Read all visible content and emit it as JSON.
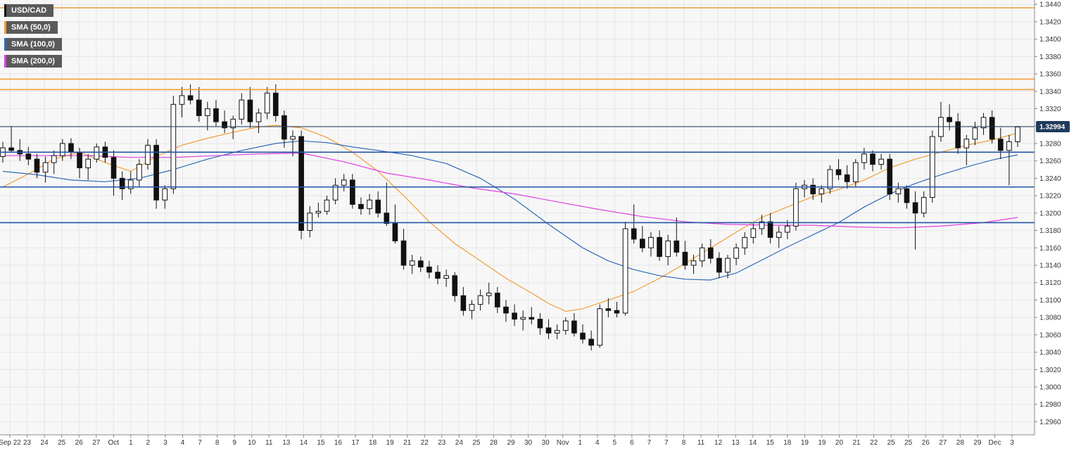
{
  "chart_data": {
    "type": "candlestick",
    "symbol": "USD/CAD",
    "ylim": [
      1.2945,
      1.3445
    ],
    "y_ticks": [
      "1.3440",
      "1.3420",
      "1.3400",
      "1.3380",
      "1.3360",
      "1.3340",
      "1.3320",
      "1.3300",
      "1.3280",
      "1.3260",
      "1.3240",
      "1.3220",
      "1.3200",
      "1.3180",
      "1.3160",
      "1.3140",
      "1.3120",
      "1.3100",
      "1.3080",
      "1.3060",
      "1.3040",
      "1.3020",
      "1.3000",
      "1.2980",
      "1.2960"
    ],
    "x_ticks": [
      "Sep 22",
      "23",
      "24",
      "25",
      "26",
      "27",
      "Oct",
      "1",
      "2",
      "3",
      "4",
      "7",
      "8",
      "9",
      "10",
      "11",
      "13",
      "14",
      "15",
      "16",
      "17",
      "18",
      "19",
      "21",
      "22",
      "23",
      "24",
      "25",
      "28",
      "29",
      "30",
      "30",
      "Nov",
      "1",
      "4",
      "5",
      "6",
      "7",
      "7",
      "8",
      "11",
      "12",
      "13",
      "14",
      "15",
      "18",
      "19",
      "19",
      "20",
      "21",
      "22",
      "25",
      "25",
      "26",
      "27",
      "28",
      "29",
      "Dec",
      "3"
    ],
    "current_price": "1.32994",
    "current_price_value": 1.32994,
    "horizontal_levels": [
      {
        "kind": "resistance",
        "value": 1.3436,
        "color": "#f29d38"
      },
      {
        "kind": "resistance",
        "value": 1.3354,
        "color": "#f29d38"
      },
      {
        "kind": "resistance",
        "value": 1.3342,
        "color": "#f29d38"
      },
      {
        "kind": "support",
        "value": 1.327,
        "color": "#2255a4"
      },
      {
        "kind": "support",
        "value": 1.323,
        "color": "#2255a4"
      },
      {
        "kind": "support",
        "value": 1.3189,
        "color": "#2255a4"
      }
    ],
    "series": [
      {
        "name": "SMA (50,0)",
        "color": "#f29d38",
        "points": [
          [
            0,
            1.323
          ],
          [
            3,
            1.3245
          ],
          [
            6,
            1.3262
          ],
          [
            9,
            1.327
          ],
          [
            12,
            1.3258
          ],
          [
            15,
            1.3248
          ],
          [
            18,
            1.3265
          ],
          [
            21,
            1.3278
          ],
          [
            24,
            1.3286
          ],
          [
            27,
            1.3293
          ],
          [
            30,
            1.3299
          ],
          [
            32,
            1.3301
          ],
          [
            35,
            1.3298
          ],
          [
            38,
            1.3287
          ],
          [
            41,
            1.327
          ],
          [
            44,
            1.3248
          ],
          [
            47,
            1.322
          ],
          [
            50,
            1.319
          ],
          [
            53,
            1.3165
          ],
          [
            56,
            1.3145
          ],
          [
            59,
            1.3125
          ],
          [
            62,
            1.3108
          ],
          [
            64,
            1.3096
          ],
          [
            66,
            1.3087
          ],
          [
            68,
            1.309
          ],
          [
            71,
            1.31
          ],
          [
            74,
            1.311
          ],
          [
            77,
            1.3125
          ],
          [
            80,
            1.3142
          ],
          [
            83,
            1.316
          ],
          [
            86,
            1.3178
          ],
          [
            89,
            1.3195
          ],
          [
            92,
            1.3207
          ],
          [
            95,
            1.3219
          ],
          [
            98,
            1.3227
          ],
          [
            101,
            1.3238
          ],
          [
            104,
            1.3252
          ],
          [
            107,
            1.3262
          ],
          [
            110,
            1.327
          ],
          [
            113,
            1.3278
          ],
          [
            116,
            1.3284
          ],
          [
            119,
            1.3292
          ]
        ]
      },
      {
        "name": "SMA (100,0)",
        "color": "#2f6ab8",
        "points": [
          [
            0,
            1.3248
          ],
          [
            4,
            1.3244
          ],
          [
            8,
            1.3238
          ],
          [
            12,
            1.3236
          ],
          [
            16,
            1.324
          ],
          [
            20,
            1.325
          ],
          [
            24,
            1.3262
          ],
          [
            28,
            1.3272
          ],
          [
            32,
            1.328
          ],
          [
            35,
            1.3283
          ],
          [
            38,
            1.3281
          ],
          [
            41,
            1.3276
          ],
          [
            44,
            1.3272
          ],
          [
            48,
            1.3266
          ],
          [
            52,
            1.3257
          ],
          [
            56,
            1.324
          ],
          [
            60,
            1.3216
          ],
          [
            64,
            1.3187
          ],
          [
            68,
            1.316
          ],
          [
            71,
            1.3145
          ],
          [
            74,
            1.3135
          ],
          [
            77,
            1.3128
          ],
          [
            80,
            1.3124
          ],
          [
            83,
            1.3123
          ],
          [
            86,
            1.3131
          ],
          [
            89,
            1.3146
          ],
          [
            92,
            1.3161
          ],
          [
            95,
            1.3175
          ],
          [
            98,
            1.3189
          ],
          [
            101,
            1.3207
          ],
          [
            104,
            1.3222
          ],
          [
            107,
            1.3234
          ],
          [
            110,
            1.3244
          ],
          [
            113,
            1.3253
          ],
          [
            116,
            1.3261
          ],
          [
            119,
            1.3267
          ]
        ]
      },
      {
        "name": "SMA (200,0)",
        "color": "#e040e0",
        "points": [
          [
            0,
            1.3266
          ],
          [
            5,
            1.3266
          ],
          [
            10,
            1.3266
          ],
          [
            15,
            1.3264
          ],
          [
            20,
            1.3264
          ],
          [
            25,
            1.3266
          ],
          [
            30,
            1.3268
          ],
          [
            35,
            1.3269
          ],
          [
            40,
            1.3259
          ],
          [
            45,
            1.3246
          ],
          [
            50,
            1.3238
          ],
          [
            55,
            1.3229
          ],
          [
            60,
            1.3222
          ],
          [
            65,
            1.3213
          ],
          [
            70,
            1.3204
          ],
          [
            75,
            1.3196
          ],
          [
            80,
            1.319
          ],
          [
            85,
            1.3187
          ],
          [
            90,
            1.3186
          ],
          [
            95,
            1.3186
          ],
          [
            100,
            1.3184
          ],
          [
            105,
            1.3183
          ],
          [
            110,
            1.3185
          ],
          [
            115,
            1.3189
          ],
          [
            119,
            1.3195
          ]
        ]
      }
    ],
    "ohlc": [
      [
        1.3265,
        1.3282,
        1.3258,
        1.3275
      ],
      [
        1.3275,
        1.33,
        1.327,
        1.3272
      ],
      [
        1.3272,
        1.3285,
        1.326,
        1.3268
      ],
      [
        1.3268,
        1.3276,
        1.3255,
        1.3262
      ],
      [
        1.3262,
        1.3268,
        1.324,
        1.3247
      ],
      [
        1.3247,
        1.3265,
        1.3235,
        1.3258
      ],
      [
        1.3258,
        1.3272,
        1.3245,
        1.3266
      ],
      [
        1.3266,
        1.3285,
        1.326,
        1.328
      ],
      [
        1.328,
        1.3286,
        1.3262,
        1.327
      ],
      [
        1.327,
        1.3275,
        1.324,
        1.3252
      ],
      [
        1.3252,
        1.3268,
        1.3238,
        1.3262
      ],
      [
        1.3262,
        1.328,
        1.3258,
        1.3276
      ],
      [
        1.3276,
        1.3282,
        1.3258,
        1.3264
      ],
      [
        1.3264,
        1.3272,
        1.322,
        1.324
      ],
      [
        1.324,
        1.3248,
        1.3215,
        1.3228
      ],
      [
        1.3228,
        1.3248,
        1.3222,
        1.3238
      ],
      [
        1.3238,
        1.3262,
        1.323,
        1.3256
      ],
      [
        1.3256,
        1.3285,
        1.325,
        1.3278
      ],
      [
        1.3278,
        1.3285,
        1.3205,
        1.3215
      ],
      [
        1.3215,
        1.3232,
        1.3205,
        1.3228
      ],
      [
        1.3228,
        1.3335,
        1.3222,
        1.3325
      ],
      [
        1.3325,
        1.3345,
        1.331,
        1.3335
      ],
      [
        1.3335,
        1.3348,
        1.3325,
        1.333
      ],
      [
        1.333,
        1.3345,
        1.3305,
        1.3312
      ],
      [
        1.3312,
        1.3328,
        1.3295,
        1.332
      ],
      [
        1.332,
        1.333,
        1.33,
        1.3305
      ],
      [
        1.3305,
        1.3318,
        1.3292,
        1.3298
      ],
      [
        1.3298,
        1.3312,
        1.3285,
        1.3308
      ],
      [
        1.3308,
        1.3338,
        1.3302,
        1.333
      ],
      [
        1.333,
        1.3345,
        1.3298,
        1.3305
      ],
      [
        1.3305,
        1.332,
        1.3292,
        1.3315
      ],
      [
        1.3315,
        1.3345,
        1.3308,
        1.3338
      ],
      [
        1.3338,
        1.3348,
        1.3305,
        1.3312
      ],
      [
        1.3312,
        1.3318,
        1.3275,
        1.3285
      ],
      [
        1.3285,
        1.3295,
        1.3265,
        1.3288
      ],
      [
        1.3288,
        1.3295,
        1.317,
        1.318
      ],
      [
        1.318,
        1.3208,
        1.3172,
        1.32
      ],
      [
        1.32,
        1.3212,
        1.3195,
        1.3202
      ],
      [
        1.3202,
        1.322,
        1.3198,
        1.3215
      ],
      [
        1.3215,
        1.324,
        1.321,
        1.3232
      ],
      [
        1.3232,
        1.3245,
        1.3225,
        1.3238
      ],
      [
        1.3238,
        1.3245,
        1.3205,
        1.321
      ],
      [
        1.321,
        1.3218,
        1.3198,
        1.3205
      ],
      [
        1.3205,
        1.3222,
        1.3198,
        1.3215
      ],
      [
        1.3215,
        1.3225,
        1.3195,
        1.32
      ],
      [
        1.32,
        1.3235,
        1.3185,
        1.3188
      ],
      [
        1.3188,
        1.321,
        1.3165,
        1.3168
      ],
      [
        1.3168,
        1.3182,
        1.3135,
        1.314
      ],
      [
        1.314,
        1.3152,
        1.313,
        1.3145
      ],
      [
        1.3145,
        1.315,
        1.3132,
        1.3138
      ],
      [
        1.3138,
        1.3145,
        1.3125,
        1.3132
      ],
      [
        1.3132,
        1.314,
        1.3118,
        1.3125
      ],
      [
        1.3125,
        1.3135,
        1.3115,
        1.3128
      ],
      [
        1.3128,
        1.3132,
        1.3098,
        1.3105
      ],
      [
        1.3105,
        1.3115,
        1.3082,
        1.3088
      ],
      [
        1.3088,
        1.31,
        1.3078,
        1.3095
      ],
      [
        1.3095,
        1.3112,
        1.3088,
        1.3105
      ],
      [
        1.3105,
        1.312,
        1.3095,
        1.3108
      ],
      [
        1.3108,
        1.3115,
        1.3085,
        1.3092
      ],
      [
        1.3092,
        1.31,
        1.3075,
        1.3085
      ],
      [
        1.3085,
        1.3095,
        1.307,
        1.3078
      ],
      [
        1.3078,
        1.3088,
        1.3065,
        1.308
      ],
      [
        1.308,
        1.3092,
        1.3072,
        1.3078
      ],
      [
        1.3078,
        1.3085,
        1.306,
        1.3068
      ],
      [
        1.3068,
        1.3078,
        1.3055,
        1.3062
      ],
      [
        1.3062,
        1.3072,
        1.3055,
        1.3065
      ],
      [
        1.3065,
        1.308,
        1.306,
        1.3076
      ],
      [
        1.3076,
        1.3085,
        1.3058,
        1.3062
      ],
      [
        1.3062,
        1.3072,
        1.305,
        1.3055
      ],
      [
        1.3055,
        1.3065,
        1.3042,
        1.3048
      ],
      [
        1.3048,
        1.3095,
        1.3045,
        1.309
      ],
      [
        1.309,
        1.3102,
        1.308,
        1.3088
      ],
      [
        1.3088,
        1.3098,
        1.308,
        1.3085
      ],
      [
        1.3085,
        1.319,
        1.3082,
        1.3182
      ],
      [
        1.3182,
        1.321,
        1.3165,
        1.317
      ],
      [
        1.317,
        1.3185,
        1.3155,
        1.316
      ],
      [
        1.316,
        1.3178,
        1.315,
        1.3172
      ],
      [
        1.3172,
        1.318,
        1.3145,
        1.315
      ],
      [
        1.315,
        1.3175,
        1.314,
        1.3168
      ],
      [
        1.3168,
        1.3195,
        1.315,
        1.3155
      ],
      [
        1.3155,
        1.3168,
        1.3135,
        1.314
      ],
      [
        1.314,
        1.3152,
        1.313,
        1.3145
      ],
      [
        1.3145,
        1.3165,
        1.3138,
        1.316
      ],
      [
        1.316,
        1.317,
        1.3142,
        1.3148
      ],
      [
        1.3148,
        1.3155,
        1.3125,
        1.3132
      ],
      [
        1.3132,
        1.3152,
        1.3125,
        1.3148
      ],
      [
        1.3148,
        1.3165,
        1.314,
        1.316
      ],
      [
        1.316,
        1.3178,
        1.3152,
        1.3172
      ],
      [
        1.3172,
        1.3188,
        1.3165,
        1.3182
      ],
      [
        1.3182,
        1.3198,
        1.3175,
        1.319
      ],
      [
        1.319,
        1.32,
        1.3165,
        1.3172
      ],
      [
        1.3172,
        1.3185,
        1.316,
        1.3178
      ],
      [
        1.3178,
        1.3192,
        1.317,
        1.3185
      ],
      [
        1.3185,
        1.3235,
        1.318,
        1.3228
      ],
      [
        1.3228,
        1.3238,
        1.3218,
        1.3232
      ],
      [
        1.3232,
        1.324,
        1.3215,
        1.3222
      ],
      [
        1.3222,
        1.3232,
        1.3212,
        1.3228
      ],
      [
        1.3228,
        1.3255,
        1.3222,
        1.325
      ],
      [
        1.325,
        1.3262,
        1.3238,
        1.3244
      ],
      [
        1.3244,
        1.3255,
        1.3228,
        1.3236
      ],
      [
        1.3236,
        1.3262,
        1.323,
        1.3258
      ],
      [
        1.3258,
        1.3275,
        1.325,
        1.3268
      ],
      [
        1.3268,
        1.3272,
        1.3248,
        1.3256
      ],
      [
        1.3256,
        1.3268,
        1.325,
        1.3262
      ],
      [
        1.3262,
        1.3268,
        1.3215,
        1.3222
      ],
      [
        1.3222,
        1.3235,
        1.3212,
        1.3228
      ],
      [
        1.3228,
        1.3232,
        1.3205,
        1.3212
      ],
      [
        1.3212,
        1.3225,
        1.3158,
        1.32
      ],
      [
        1.32,
        1.3225,
        1.3195,
        1.3218
      ],
      [
        1.3218,
        1.3295,
        1.3212,
        1.3288
      ],
      [
        1.3288,
        1.3328,
        1.3282,
        1.331
      ],
      [
        1.331,
        1.3325,
        1.3295,
        1.3305
      ],
      [
        1.3305,
        1.3315,
        1.3268,
        1.3275
      ],
      [
        1.3275,
        1.329,
        1.3255,
        1.3285
      ],
      [
        1.3285,
        1.3305,
        1.3278,
        1.3298
      ],
      [
        1.3298,
        1.3315,
        1.329,
        1.331
      ],
      [
        1.331,
        1.3318,
        1.328,
        1.3285
      ],
      [
        1.3285,
        1.3298,
        1.3262,
        1.3272
      ],
      [
        1.3272,
        1.329,
        1.3232,
        1.3282
      ],
      [
        1.3282,
        1.33,
        1.3276,
        1.3299
      ]
    ]
  },
  "legend": [
    {
      "label": "USD/CAD",
      "color": "#111111"
    },
    {
      "label": "SMA (50,0)",
      "color": "#f29d38"
    },
    {
      "label": "SMA (100,0)",
      "color": "#2f6ab8"
    },
    {
      "label": "SMA (200,0)",
      "color": "#e040e0"
    }
  ],
  "colors": {
    "bull": "#ffffff",
    "bear": "#111111",
    "grid": "#e6e6e6",
    "price_tag_bg": "#1f3b5b",
    "current_price_line": "#1f3b5b"
  }
}
